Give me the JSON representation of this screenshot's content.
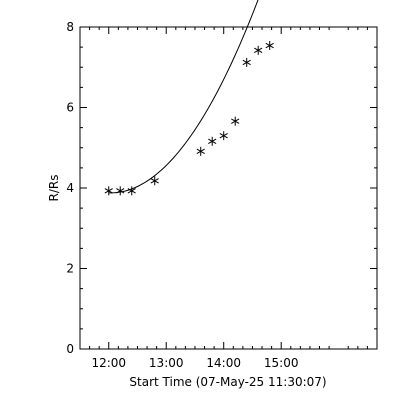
{
  "chart_data": {
    "type": "scatter",
    "title": "",
    "xlabel": "Start Time (07-May-25 11:30:07)",
    "ylabel": "R/Rs",
    "xlim": [
      "11:30",
      "16:40"
    ],
    "ylim": [
      0,
      8
    ],
    "xticks": [
      "12:00",
      "13:00",
      "14:00",
      "15:00"
    ],
    "yticks": [
      0,
      2,
      4,
      6,
      8
    ],
    "grid": false,
    "marker": "asterisk",
    "series": [
      {
        "points": [
          {
            "x": "12:00",
            "y": 3.93
          },
          {
            "x": "12:12",
            "y": 3.93
          },
          {
            "x": "12:24",
            "y": 3.93
          },
          {
            "x": "12:48",
            "y": 4.18
          },
          {
            "x": "13:36",
            "y": 4.91
          },
          {
            "x": "13:48",
            "y": 5.16
          },
          {
            "x": "14:00",
            "y": 5.3
          },
          {
            "x": "14:12",
            "y": 5.66
          },
          {
            "x": "14:24",
            "y": 7.12
          },
          {
            "x": "14:36",
            "y": 7.42
          },
          {
            "x": "14:48",
            "y": 7.54
          }
        ]
      }
    ],
    "fit_line": {
      "type": "quadratic",
      "coeffs": [
        3.88,
        -0.05,
        0.73
      ],
      "x_range": [
        "12:00",
        "14:48"
      ]
    }
  }
}
